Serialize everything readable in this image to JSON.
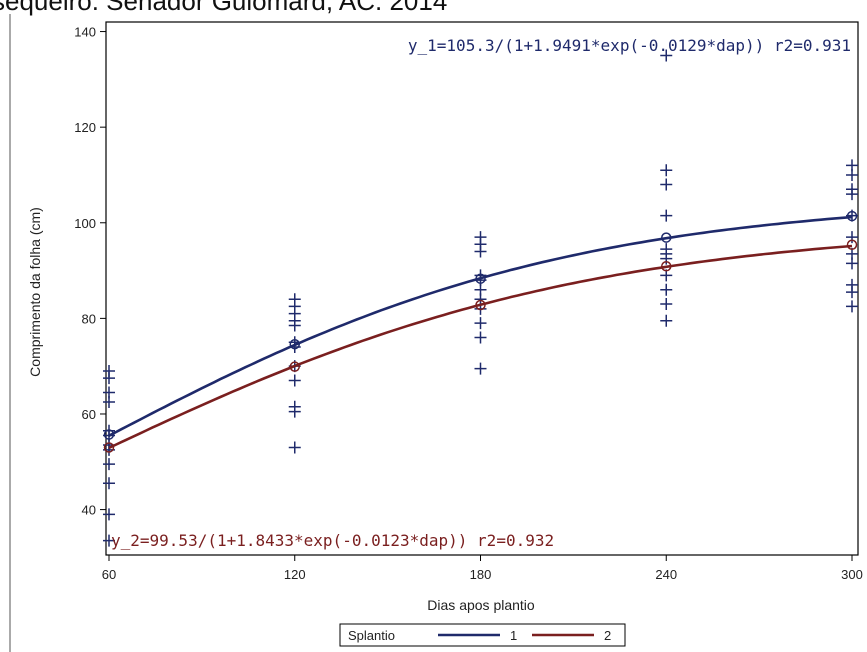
{
  "header": {
    "title": "sequeiro. Senador Guiomard, AC. 2014"
  },
  "colors": {
    "series_1": "#1f2a6b",
    "series_2": "#7a1f1f",
    "obs": "#1f2a6b",
    "axis": "#000000"
  },
  "chart_data": {
    "type": "scatter",
    "xlabel": "Dias apos plantio",
    "ylabel": "Comprimento da folha (cm)",
    "xlim": [
      60,
      300
    ],
    "ylim": [
      30.5,
      142
    ],
    "xticks": [
      60,
      120,
      180,
      240,
      300
    ],
    "yticks": [
      40,
      60,
      80,
      100,
      120,
      140
    ],
    "grid": false,
    "legend": {
      "placement": "bottom-center",
      "title": "Splantio",
      "entries": [
        "1",
        "2"
      ]
    },
    "annotations": [
      {
        "series": "1",
        "text": "y_1=105.3/(1+1.9491*exp(-0.0129*dap)) r2=0.931",
        "placement": "top-right"
      },
      {
        "series": "2",
        "text": "y_2=99.53/(1+1.8433*exp(-0.0123*dap)) r2=0.932",
        "placement": "bottom-left"
      }
    ],
    "series": [
      {
        "name": "1",
        "model": {
          "a": 105.3,
          "b": 1.9491,
          "k": 0.0129
        },
        "means": [
          {
            "x": 60,
            "y": 55.7
          },
          {
            "x": 120,
            "y": 74.6
          },
          {
            "x": 180,
            "y": 88.3
          },
          {
            "x": 240,
            "y": 96.9
          },
          {
            "x": 300,
            "y": 101.4
          }
        ]
      },
      {
        "name": "2",
        "model": {
          "a": 99.53,
          "b": 1.8433,
          "k": 0.0123
        },
        "means": [
          {
            "x": 60,
            "y": 53.0
          },
          {
            "x": 120,
            "y": 69.9
          },
          {
            "x": 180,
            "y": 82.8
          },
          {
            "x": 240,
            "y": 90.9
          },
          {
            "x": 300,
            "y": 95.4
          }
        ]
      }
    ],
    "observations": [
      {
        "x": 60,
        "y": [
          69.0,
          67.5,
          64.5,
          62.5,
          56.5,
          55.5,
          53.5,
          52.5,
          49.5,
          45.5,
          39.0,
          33.5
        ]
      },
      {
        "x": 120,
        "y": [
          84.0,
          82.5,
          81.0,
          79.5,
          78.5,
          75.0,
          74.0,
          70.0,
          67.0,
          61.5,
          60.5,
          53.0
        ]
      },
      {
        "x": 180,
        "y": [
          97.0,
          95.5,
          94.0,
          89.0,
          88.0,
          86.0,
          84.0,
          82.0,
          79.0,
          76.0,
          69.5
        ]
      },
      {
        "x": 240,
        "y": [
          135.0,
          111.0,
          108.0,
          101.5,
          94.5,
          93.5,
          92.5,
          89.0,
          86.0,
          83.0,
          79.5
        ]
      },
      {
        "x": 300,
        "y": [
          112.0,
          110.0,
          107.0,
          106.0,
          101.5,
          97.0,
          93.5,
          91.5,
          87.0,
          85.5,
          82.5
        ]
      }
    ]
  }
}
